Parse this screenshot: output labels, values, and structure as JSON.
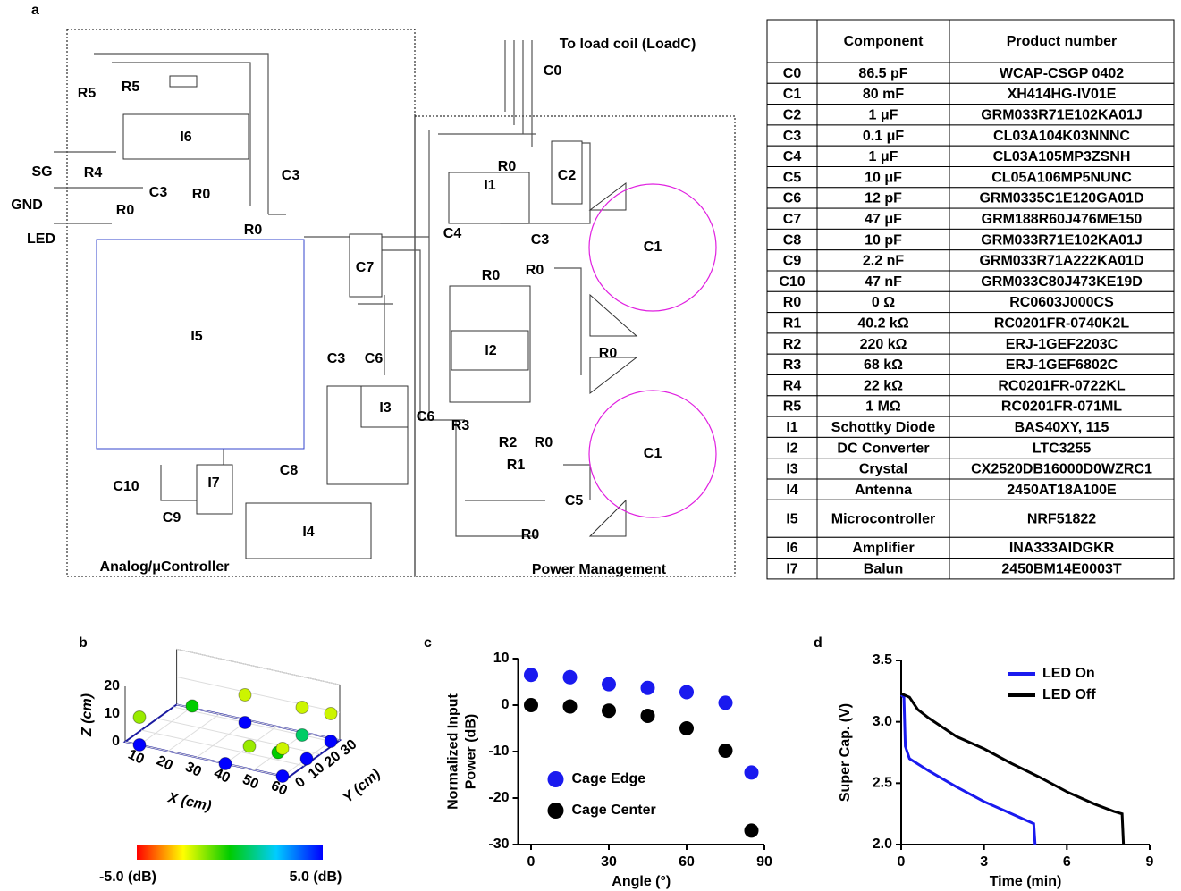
{
  "panels": [
    "a",
    "b",
    "c",
    "d"
  ],
  "circuit": {
    "labels": [
      "To load coil (LoadC)",
      "C0",
      "R5",
      "R5",
      "I6",
      "SG",
      "R4",
      "C3",
      "GND",
      "C3",
      "R0",
      "R0",
      "LED",
      "R0",
      "I5",
      "C7",
      "C3",
      "C6",
      "I3",
      "C6",
      "C10",
      "I7",
      "C8",
      "C9",
      "I4",
      "Analog/μController",
      "I1",
      "R0",
      "C2",
      "C4",
      "C3",
      "R0",
      "R0",
      "C1",
      "I2",
      "R0",
      "C1",
      "R3",
      "R2",
      "R0",
      "R1",
      "C5",
      "R0",
      "Power Management"
    ]
  },
  "table": {
    "header": [
      "Component",
      "Product number"
    ],
    "rows": [
      [
        "C0",
        "86.5 pF",
        "WCAP-CSGP 0402"
      ],
      [
        "C1",
        "80 mF",
        "XH414HG-IV01E"
      ],
      [
        "C2",
        "1 μF",
        "GRM033R71E102KA01J"
      ],
      [
        "C3",
        "0.1 μF",
        "CL03A104K03NNNC"
      ],
      [
        "C4",
        "1 μF",
        "CL03A105MP3ZSNH"
      ],
      [
        "C5",
        "10 μF",
        "CL05A106MP5NUNC"
      ],
      [
        "C6",
        "12 pF",
        "GRM0335C1E120GA01D"
      ],
      [
        "C7",
        "47 μF",
        "GRM188R60J476ME150"
      ],
      [
        "C8",
        "10 pF",
        "GRM033R71E102KA01J"
      ],
      [
        "C9",
        "2.2 nF",
        "GRM033R71A222KA01D"
      ],
      [
        "C10",
        "47 nF",
        "GRM033C80J473KE19D"
      ],
      [
        "R0",
        "0 Ω",
        "RC0603J000CS"
      ],
      [
        "R1",
        "40.2 kΩ",
        "RC0201FR-0740K2L"
      ],
      [
        "R2",
        "220 kΩ",
        "ERJ-1GEF2203C"
      ],
      [
        "R3",
        "68 kΩ",
        "ERJ-1GEF6802C"
      ],
      [
        "R4",
        "22 kΩ",
        "RC0201FR-0722KL"
      ],
      [
        "R5",
        "1 MΩ",
        "RC0201FR-071ML"
      ],
      [
        "I1",
        "Schottky Diode",
        "BAS40XY, 115"
      ],
      [
        "I2",
        "DC Converter",
        "LTC3255"
      ],
      [
        "I3",
        "Crystal",
        "CX2520DB16000D0WZRC1"
      ],
      [
        "I4",
        "Antenna",
        "2450AT18A100E"
      ],
      [
        "I5",
        "Microcontroller",
        "NRF51822"
      ],
      [
        "I6",
        "Amplifier",
        "INA333AIDGKR"
      ],
      [
        "I7",
        "Balun",
        "2450BM14E0003T"
      ]
    ]
  },
  "chart_data": [
    {
      "type": "scatter3d",
      "xlabel": "X (cm)",
      "ylabel": "Y (cm)",
      "zlabel": "Z (cm)",
      "x": [
        10,
        10,
        20,
        30,
        30,
        50,
        50,
        40,
        50,
        40,
        60,
        60,
        60,
        60,
        60
      ],
      "y": [
        0,
        0,
        15,
        30,
        30,
        30,
        30,
        15,
        15,
        0,
        30,
        30,
        0,
        0,
        15
      ],
      "z": [
        0,
        10,
        10,
        10,
        0,
        10,
        0,
        0,
        0,
        0,
        10,
        0,
        10,
        0,
        0
      ],
      "values": [
        5,
        -1.5,
        0,
        -2,
        5,
        -2,
        1,
        -1.5,
        0,
        5,
        -2,
        5,
        -2,
        5,
        5
      ],
      "xlim": [
        5,
        62
      ],
      "ylim": [
        0,
        32
      ],
      "zlim": [
        0,
        20
      ],
      "xticks": [
        10,
        20,
        30,
        40,
        50,
        60
      ],
      "yticks": [
        0,
        10,
        20,
        30
      ],
      "zticks": [
        0,
        10,
        20
      ],
      "colormap": [
        "#ff0000",
        "#ffff00",
        "#00cc00",
        "#00ccff",
        "#0000ff"
      ],
      "clim": [
        {
          "value": -5,
          "label": "-5.0 (dB)"
        },
        {
          "value": 5,
          "label": "5.0 (dB)"
        }
      ]
    },
    {
      "type": "scatter",
      "xlabel": "Angle (°)",
      "ylabel": [
        "Normalized Input",
        "Power (dB)"
      ],
      "x": [
        0,
        15,
        30,
        45,
        60,
        75,
        85
      ],
      "series": [
        {
          "name": "Cage Edge",
          "color": "#1a1aef",
          "values": [
            6.5,
            6,
            4.5,
            3.7,
            2.8,
            0.5,
            -14.5
          ]
        },
        {
          "name": "Cage Center",
          "color": "#000000",
          "values": [
            0,
            -0.3,
            -1.2,
            -2.3,
            -5,
            -9.8,
            -27
          ]
        }
      ],
      "xlim": [
        -5,
        90
      ],
      "ylim": [
        -30,
        10
      ],
      "xticks": [
        0,
        30,
        60,
        90
      ],
      "yticks": [
        -30,
        -20,
        -10,
        0,
        10
      ],
      "legend": "center-left"
    },
    {
      "type": "line",
      "xlabel": "Time (min)",
      "ylabel": "Super Cap. (V)",
      "series": [
        {
          "name": "LED On",
          "color": "#1a1aef",
          "x": [
            0,
            0.1,
            0.15,
            0.3,
            1,
            2,
            3,
            4,
            4.8,
            4.85
          ],
          "values": [
            3.22,
            3.2,
            2.8,
            2.7,
            2.6,
            2.47,
            2.35,
            2.25,
            2.17,
            2.0
          ]
        },
        {
          "name": "LED Off",
          "color": "#000000",
          "x": [
            0,
            0.3,
            0.6,
            1,
            2,
            3,
            4,
            5,
            6,
            7,
            7.7,
            8,
            8.05
          ],
          "values": [
            3.23,
            3.2,
            3.1,
            3.03,
            2.88,
            2.78,
            2.66,
            2.55,
            2.43,
            2.33,
            2.27,
            2.25,
            2.0
          ]
        }
      ],
      "xlim": [
        0,
        9
      ],
      "ylim": [
        2,
        3.5
      ],
      "xticks": [
        0,
        3,
        6,
        9
      ],
      "yticks": [
        {
          "value": 2,
          "label": "2.0"
        },
        2.5,
        {
          "value": 3,
          "label": "3.0"
        },
        3.5
      ],
      "legend": "upper-right"
    }
  ]
}
